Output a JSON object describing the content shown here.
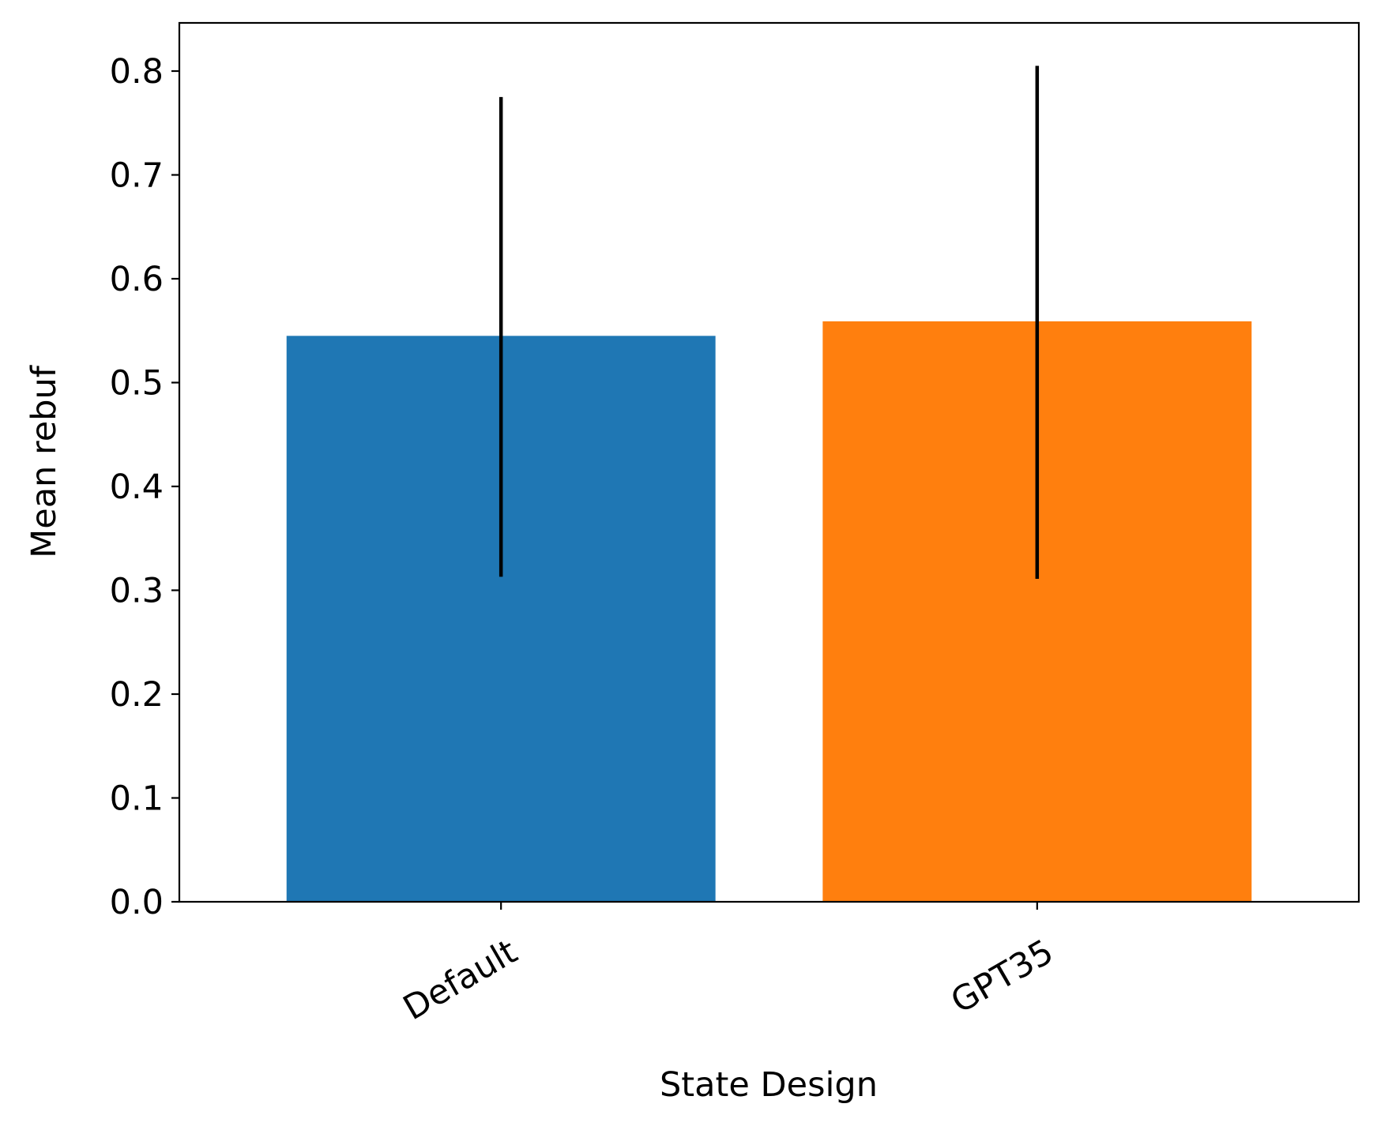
{
  "chart_data": {
    "type": "bar",
    "title": "",
    "xlabel": "State Design",
    "ylabel": "Mean rebuf",
    "categories": [
      "Default",
      "GPT35"
    ],
    "values": [
      0.545,
      0.559
    ],
    "error_bars": [
      {
        "low": 0.313,
        "high": 0.775
      },
      {
        "low": 0.311,
        "high": 0.805
      }
    ],
    "colors": [
      "#1f77b4",
      "#ff7f0e"
    ],
    "error_bar_color": "#000000",
    "ylim": [
      0,
      0.845
    ],
    "yticks": [
      0.0,
      0.1,
      0.2,
      0.3,
      0.4,
      0.5,
      0.6,
      0.7,
      0.8
    ],
    "ytick_labels": [
      "0.0",
      "0.1",
      "0.2",
      "0.3",
      "0.4",
      "0.5",
      "0.6",
      "0.7",
      "0.8"
    ],
    "xtick_rotation": "30 degrees",
    "grid": false,
    "legend": false
  }
}
